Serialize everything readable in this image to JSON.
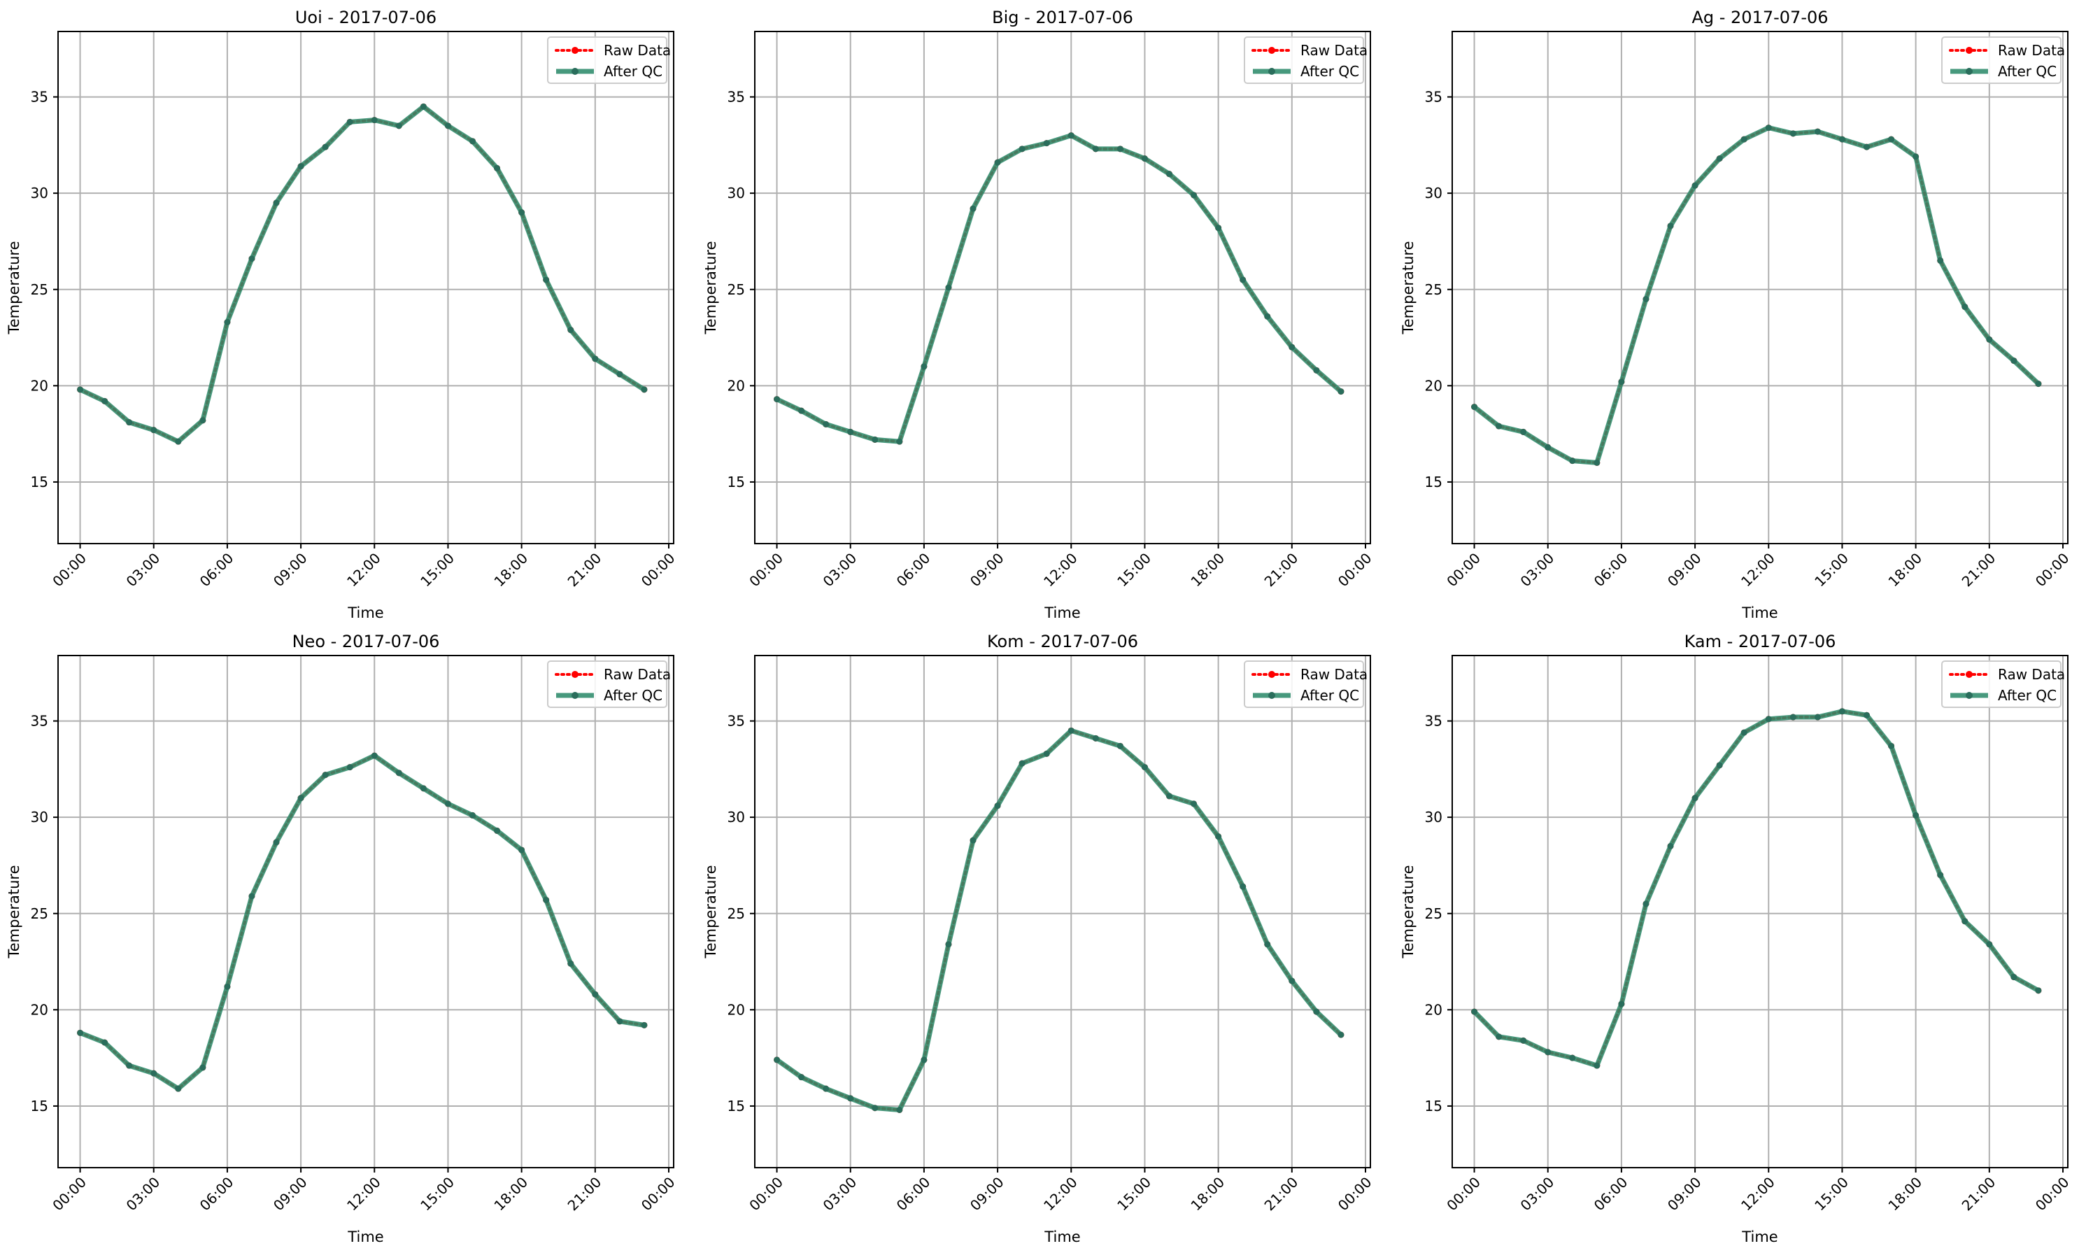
{
  "figure": {
    "ylabel": "Temperature",
    "xlabel": "Time",
    "colors": {
      "raw": "#ff0000",
      "qc": "#2e8b6b",
      "qc_marker": "#2a6e5c",
      "grid": "#b0b0b0"
    }
  },
  "legend": {
    "raw_label": "Raw Data",
    "qc_label": "After QC",
    "placement": "top-right"
  },
  "chart_data": [
    {
      "type": "line",
      "title": "Uoi - 2017-07-06",
      "xlabel": "Time",
      "ylabel": "Temperature",
      "x_unit": "hour",
      "x": [
        0,
        1,
        2,
        3,
        4,
        5,
        6,
        7,
        8,
        9,
        10,
        11,
        12,
        13,
        14,
        15,
        16,
        17,
        18,
        19,
        20,
        21,
        22,
        23
      ],
      "xticks": [
        "00:00",
        "03:00",
        "06:00",
        "09:00",
        "12:00",
        "15:00",
        "18:00",
        "21:00",
        "00:00"
      ],
      "yticks": [
        15,
        20,
        25,
        30,
        35
      ],
      "ylim": [
        11.8,
        38.4
      ],
      "xlim": [
        -0.9,
        24.2
      ],
      "grid": true,
      "series": [
        {
          "name": "Raw Data",
          "values": [
            19.8,
            19.2,
            18.1,
            17.7,
            17.1,
            18.2,
            23.3,
            26.6,
            29.5,
            31.4,
            32.4,
            33.7,
            33.8,
            33.5,
            34.5,
            33.5,
            32.7,
            31.3,
            29.0,
            25.5,
            22.9,
            21.4,
            20.6,
            19.8
          ]
        },
        {
          "name": "After QC",
          "values": [
            19.8,
            19.2,
            18.1,
            17.7,
            17.1,
            18.2,
            23.3,
            26.6,
            29.5,
            31.4,
            32.4,
            33.7,
            33.8,
            33.5,
            34.5,
            33.5,
            32.7,
            31.3,
            29.0,
            25.5,
            22.9,
            21.4,
            20.6,
            19.8
          ]
        }
      ]
    },
    {
      "type": "line",
      "title": "Big - 2017-07-06",
      "xlabel": "Time",
      "ylabel": "Temperature",
      "x_unit": "hour",
      "x": [
        0,
        1,
        2,
        3,
        4,
        5,
        6,
        7,
        8,
        9,
        10,
        11,
        12,
        13,
        14,
        15,
        16,
        17,
        18,
        19,
        20,
        21,
        22,
        23
      ],
      "xticks": [
        "00:00",
        "03:00",
        "06:00",
        "09:00",
        "12:00",
        "15:00",
        "18:00",
        "21:00",
        "00:00"
      ],
      "yticks": [
        15,
        20,
        25,
        30,
        35
      ],
      "ylim": [
        11.8,
        38.4
      ],
      "xlim": [
        -0.9,
        24.2
      ],
      "grid": true,
      "series": [
        {
          "name": "Raw Data",
          "values": [
            19.3,
            18.7,
            18.0,
            17.6,
            17.2,
            17.1,
            21.0,
            25.1,
            29.2,
            31.6,
            32.3,
            32.6,
            33.0,
            32.3,
            32.3,
            31.8,
            31.0,
            29.9,
            28.2,
            25.5,
            23.6,
            22.0,
            20.8,
            19.7
          ]
        },
        {
          "name": "After QC",
          "values": [
            19.3,
            18.7,
            18.0,
            17.6,
            17.2,
            17.1,
            21.0,
            25.1,
            29.2,
            31.6,
            32.3,
            32.6,
            33.0,
            32.3,
            32.3,
            31.8,
            31.0,
            29.9,
            28.2,
            25.5,
            23.6,
            22.0,
            20.8,
            19.7
          ]
        }
      ]
    },
    {
      "type": "line",
      "title": "Ag - 2017-07-06",
      "xlabel": "Time",
      "ylabel": "Temperature",
      "x_unit": "hour",
      "x": [
        0,
        1,
        2,
        3,
        4,
        5,
        6,
        7,
        8,
        9,
        10,
        11,
        12,
        13,
        14,
        15,
        16,
        17,
        18,
        19,
        20,
        21,
        22,
        23
      ],
      "xticks": [
        "00:00",
        "03:00",
        "06:00",
        "09:00",
        "12:00",
        "15:00",
        "18:00",
        "21:00",
        "00:00"
      ],
      "yticks": [
        15,
        20,
        25,
        30,
        35
      ],
      "ylim": [
        11.8,
        38.4
      ],
      "xlim": [
        -0.9,
        24.2
      ],
      "grid": true,
      "series": [
        {
          "name": "Raw Data",
          "values": [
            18.9,
            17.9,
            17.6,
            16.8,
            16.1,
            16.0,
            20.2,
            24.5,
            28.3,
            30.4,
            31.8,
            32.8,
            33.4,
            33.1,
            33.2,
            32.8,
            32.4,
            32.8,
            31.9,
            26.5,
            24.1,
            22.4,
            21.3,
            20.1
          ]
        },
        {
          "name": "After QC",
          "values": [
            18.9,
            17.9,
            17.6,
            16.8,
            16.1,
            16.0,
            20.2,
            24.5,
            28.3,
            30.4,
            31.8,
            32.8,
            33.4,
            33.1,
            33.2,
            32.8,
            32.4,
            32.8,
            31.9,
            26.5,
            24.1,
            22.4,
            21.3,
            20.1
          ]
        }
      ]
    },
    {
      "type": "line",
      "title": "Neo - 2017-07-06",
      "xlabel": "Time",
      "ylabel": "Temperature",
      "x_unit": "hour",
      "x": [
        0,
        1,
        2,
        3,
        4,
        5,
        6,
        7,
        8,
        9,
        10,
        11,
        12,
        13,
        14,
        15,
        16,
        17,
        18,
        19,
        20,
        21,
        22,
        23
      ],
      "xticks": [
        "00:00",
        "03:00",
        "06:00",
        "09:00",
        "12:00",
        "15:00",
        "18:00",
        "21:00",
        "00:00"
      ],
      "yticks": [
        15,
        20,
        25,
        30,
        35
      ],
      "ylim": [
        11.8,
        38.4
      ],
      "xlim": [
        -0.9,
        24.2
      ],
      "grid": true,
      "series": [
        {
          "name": "Raw Data",
          "values": [
            18.8,
            18.3,
            17.1,
            16.7,
            15.9,
            17.0,
            21.2,
            25.9,
            28.7,
            31.0,
            32.2,
            32.6,
            33.2,
            32.3,
            31.5,
            30.7,
            30.1,
            29.3,
            28.3,
            25.7,
            22.4,
            20.8,
            19.4,
            19.2
          ]
        },
        {
          "name": "After QC",
          "values": [
            18.8,
            18.3,
            17.1,
            16.7,
            15.9,
            17.0,
            21.2,
            25.9,
            28.7,
            31.0,
            32.2,
            32.6,
            33.2,
            32.3,
            31.5,
            30.7,
            30.1,
            29.3,
            28.3,
            25.7,
            22.4,
            20.8,
            19.4,
            19.2
          ]
        }
      ]
    },
    {
      "type": "line",
      "title": "Kom - 2017-07-06",
      "xlabel": "Time",
      "ylabel": "Temperature",
      "x_unit": "hour",
      "x": [
        0,
        1,
        2,
        3,
        4,
        5,
        6,
        7,
        8,
        9,
        10,
        11,
        12,
        13,
        14,
        15,
        16,
        17,
        18,
        19,
        20,
        21,
        22,
        23
      ],
      "xticks": [
        "00:00",
        "03:00",
        "06:00",
        "09:00",
        "12:00",
        "15:00",
        "18:00",
        "21:00",
        "00:00"
      ],
      "yticks": [
        15,
        20,
        25,
        30,
        35
      ],
      "ylim": [
        11.8,
        38.4
      ],
      "xlim": [
        -0.9,
        24.2
      ],
      "grid": true,
      "series": [
        {
          "name": "Raw Data",
          "values": [
            17.4,
            16.5,
            15.9,
            15.4,
            14.9,
            14.8,
            17.4,
            23.4,
            28.8,
            30.6,
            32.8,
            33.3,
            34.5,
            34.1,
            33.7,
            32.6,
            31.1,
            30.7,
            29.0,
            26.4,
            23.4,
            21.5,
            19.9,
            18.7
          ]
        },
        {
          "name": "After QC",
          "values": [
            17.4,
            16.5,
            15.9,
            15.4,
            14.9,
            14.8,
            17.4,
            23.4,
            28.8,
            30.6,
            32.8,
            33.3,
            34.5,
            34.1,
            33.7,
            32.6,
            31.1,
            30.7,
            29.0,
            26.4,
            23.4,
            21.5,
            19.9,
            18.7
          ]
        }
      ]
    },
    {
      "type": "line",
      "title": "Kam - 2017-07-06",
      "xlabel": "Time",
      "ylabel": "Temperature",
      "x_unit": "hour",
      "x": [
        0,
        1,
        2,
        3,
        4,
        5,
        6,
        7,
        8,
        9,
        10,
        11,
        12,
        13,
        14,
        15,
        16,
        17,
        18,
        19,
        20,
        21,
        22,
        23
      ],
      "xticks": [
        "00:00",
        "03:00",
        "06:00",
        "09:00",
        "12:00",
        "15:00",
        "18:00",
        "21:00",
        "00:00"
      ],
      "yticks": [
        15,
        20,
        25,
        30,
        35
      ],
      "ylim": [
        11.8,
        38.4
      ],
      "xlim": [
        -0.9,
        24.2
      ],
      "grid": true,
      "series": [
        {
          "name": "Raw Data",
          "values": [
            19.9,
            18.6,
            18.4,
            17.8,
            17.5,
            17.1,
            20.3,
            25.5,
            28.5,
            31.0,
            32.7,
            34.4,
            35.1,
            35.2,
            35.2,
            35.5,
            35.3,
            33.7,
            30.1,
            27.0,
            24.6,
            23.4,
            21.7,
            21.0
          ]
        },
        {
          "name": "After QC",
          "values": [
            19.9,
            18.6,
            18.4,
            17.8,
            17.5,
            17.1,
            20.3,
            25.5,
            28.5,
            31.0,
            32.7,
            34.4,
            35.1,
            35.2,
            35.2,
            35.5,
            35.3,
            33.7,
            30.1,
            27.0,
            24.6,
            23.4,
            21.7,
            21.0
          ]
        }
      ]
    }
  ]
}
